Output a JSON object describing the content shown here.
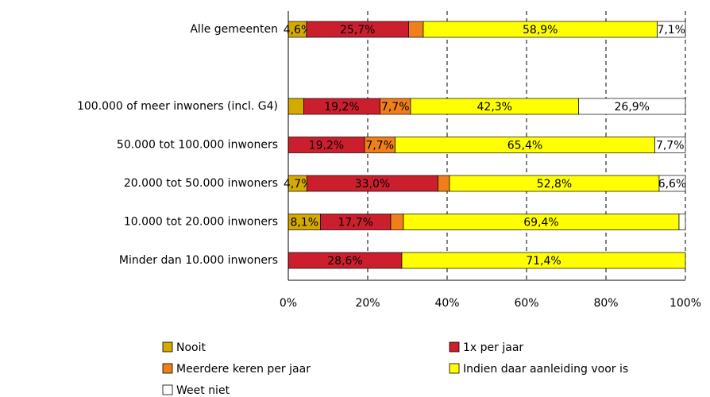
{
  "chart_data": {
    "type": "stacked_barh",
    "categories": [
      "Alle gemeenten",
      null,
      "100.000 of meer inwoners (incl. G4)",
      "50.000 tot 100.000 inwoners",
      "20.000 tot 50.000 inwoners",
      "10.000 tot 20.000 inwoners",
      "Minder dan 10.000 inwoners"
    ],
    "series": [
      {
        "name": "Nooit",
        "color": "#d4a900",
        "values": [
          4.6,
          null,
          3.9,
          0,
          4.7,
          8.1,
          0
        ],
        "value_labels": [
          "4,6%",
          null,
          null,
          null,
          "4,7%",
          "8,1%",
          null
        ]
      },
      {
        "name": "1x per jaar",
        "color": "#cc1f2e",
        "values": [
          25.7,
          null,
          19.2,
          19.2,
          33.0,
          17.7,
          28.6
        ],
        "value_labels": [
          "25,7%",
          null,
          "19,2%",
          "19,2%",
          "33,0%",
          "17,7%",
          "28,6%"
        ]
      },
      {
        "name": "Meerdere keren per jaar",
        "color": "#f07f1a",
        "values": [
          3.7,
          null,
          7.7,
          7.7,
          2.9,
          3.2,
          0
        ],
        "value_labels": [
          null,
          null,
          "7,7%",
          "7,7%",
          null,
          null,
          null
        ]
      },
      {
        "name": "Indien daar aanleiding voor is",
        "color": "#ffff00",
        "values": [
          58.9,
          null,
          42.3,
          65.4,
          52.8,
          69.4,
          71.4
        ],
        "value_labels": [
          "58,9%",
          null,
          "42,3%",
          "65,4%",
          "52,8%",
          "69,4%",
          "71,4%"
        ]
      },
      {
        "name": "Weet niet",
        "color": "#ffffff",
        "values": [
          7.1,
          null,
          26.9,
          7.7,
          6.6,
          1.6,
          0
        ],
        "value_labels": [
          "7,1%",
          null,
          "26,9%",
          "7,7%",
          "6,6%",
          null,
          null
        ]
      }
    ],
    "xlim": [
      0,
      100
    ],
    "xticks": [
      {
        "value": 0,
        "label": "0%"
      },
      {
        "value": 20,
        "label": "20%"
      },
      {
        "value": 40,
        "label": "40%"
      },
      {
        "value": 60,
        "label": "60%"
      },
      {
        "value": 80,
        "label": "80%"
      },
      {
        "value": 100,
        "label": "100%"
      }
    ],
    "grid": true,
    "legend": "bottom"
  }
}
